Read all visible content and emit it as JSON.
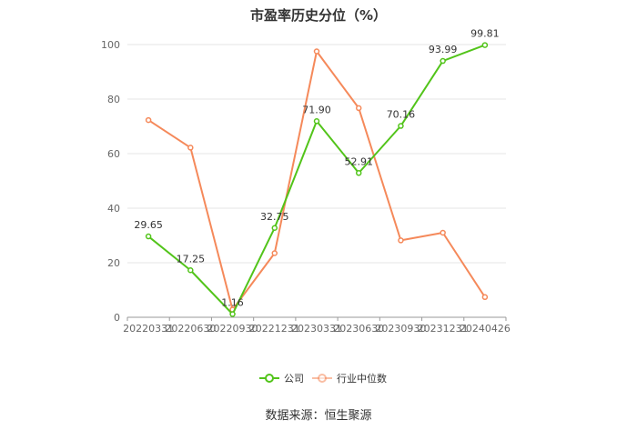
{
  "chart_data": {
    "type": "line",
    "title": "市盈率历史分位（%）",
    "categories": [
      "20220331",
      "20220630",
      "20220930",
      "20221231",
      "20230331",
      "20230630",
      "20230930",
      "20231231",
      "20240426"
    ],
    "ylim": [
      0,
      100
    ],
    "yticks": [
      0,
      20,
      40,
      60,
      80,
      100
    ],
    "ytick_labels": [
      "0",
      "20",
      "40",
      "60",
      "80",
      "100"
    ],
    "grid": true,
    "legend_position": "bottom-center",
    "series": [
      {
        "name": "公司",
        "color": "#52c41a",
        "values": [
          29.65,
          17.25,
          1.16,
          32.75,
          71.9,
          52.91,
          70.16,
          93.99,
          99.81
        ],
        "labels": [
          "29.65",
          "17.25",
          "1.16",
          "32.75",
          "71.90",
          "52.91",
          "70.16",
          "93.99",
          "99.81"
        ]
      },
      {
        "name": "行业中位数",
        "color": "#f5895a",
        "values": [
          72.3,
          62.2,
          2.8,
          23.5,
          97.5,
          76.7,
          28.2,
          31.0,
          7.4
        ]
      }
    ],
    "source": "数据来源：恒生聚源"
  }
}
